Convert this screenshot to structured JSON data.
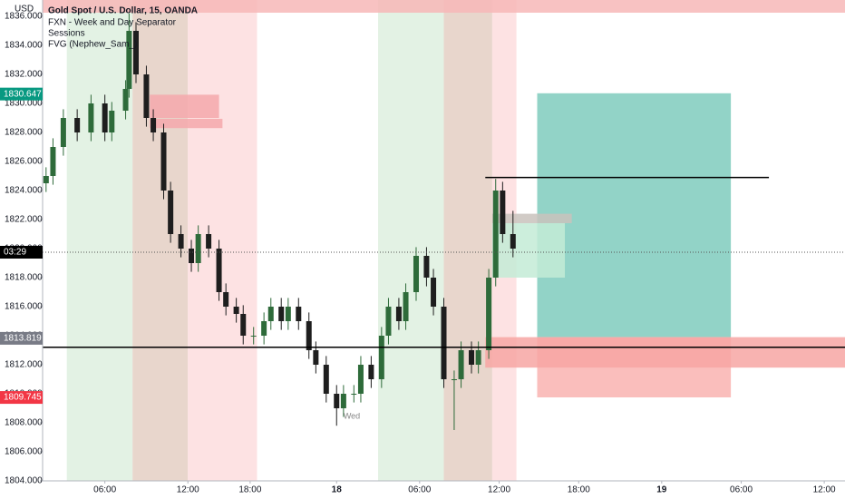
{
  "chart_data": {
    "type": "candlestick",
    "title": "Gold Spot / U.S. Dollar, 15, OANDA",
    "indicators": [
      "FXN - Week and Day Separator",
      "Sessions",
      "FVG (Nephew_Sam_)"
    ],
    "currency": "USD",
    "annotation": "Wed",
    "up_color": "#2e6b3a",
    "down_color": "#1e1e1e",
    "x": [
      1,
      3,
      6,
      10,
      14,
      18,
      20,
      24,
      25,
      27,
      30,
      32,
      35,
      37,
      40,
      43,
      45,
      48,
      51,
      53,
      56,
      58,
      61,
      64,
      66,
      69,
      71,
      74,
      77,
      79,
      82,
      85,
      87,
      90,
      92,
      95,
      98,
      100,
      103,
      105,
      108,
      111,
      113,
      116,
      119,
      121,
      124,
      126,
      129,
      131,
      133,
      136
    ],
    "open": [
      1824.5,
      1825,
      1827,
      1829,
      1828,
      1830,
      1828,
      1829.5,
      1831,
      1835,
      1832,
      1829,
      1828,
      1824,
      1821,
      1820,
      1819,
      1821,
      1820,
      1817,
      1816,
      1815.5,
      1814,
      1814,
      1815,
      1816,
      1815,
      1816,
      1815,
      1813,
      1812,
      1810,
      1809,
      1810,
      1810,
      1812,
      1811,
      1814,
      1816,
      1815,
      1817,
      1819.5,
      1818,
      1816,
      1811,
      1811,
      1813,
      1812,
      1813,
      1818,
      1824,
      1821
    ],
    "high": [
      1825.6,
      1827.6,
      1829.6,
      1829.6,
      1830.6,
      1830.6,
      1830.1,
      1831.6,
      1836.2,
      1835.6,
      1832.6,
      1829.6,
      1828.6,
      1824.6,
      1821.6,
      1820.6,
      1821.6,
      1821.6,
      1820.6,
      1817.6,
      1816.6,
      1816.1,
      1814.6,
      1815.6,
      1816.6,
      1816.6,
      1816.6,
      1816.6,
      1815.6,
      1813.6,
      1812.6,
      1810.6,
      1810.6,
      1810.6,
      1812.6,
      1812.6,
      1814.6,
      1816.6,
      1816.6,
      1817.6,
      1820.1,
      1820.1,
      1818.6,
      1816.6,
      1811.6,
      1813.6,
      1813.6,
      1813.6,
      1818.6,
      1824.8,
      1824.6,
      1822.6
    ],
    "low": [
      1823.9,
      1824.4,
      1826.4,
      1827.4,
      1827.4,
      1827.4,
      1827.4,
      1828.9,
      1830.4,
      1831.4,
      1828.4,
      1827.4,
      1823.4,
      1820.4,
      1819.4,
      1818.4,
      1818.4,
      1819.4,
      1816.4,
      1815.4,
      1814.9,
      1813.4,
      1813.4,
      1813.4,
      1814.4,
      1814.4,
      1814.4,
      1814.4,
      1812.4,
      1811.4,
      1809.4,
      1807.8,
      1808.4,
      1809.4,
      1809.4,
      1810.4,
      1810.4,
      1813.4,
      1814.4,
      1814.4,
      1816.4,
      1817.4,
      1815.4,
      1810.4,
      1807.5,
      1810.4,
      1811.4,
      1811.4,
      1812.4,
      1817.4,
      1820.4,
      1819.4
    ],
    "close": [
      1825,
      1827,
      1829,
      1828,
      1830,
      1828,
      1829.5,
      1831,
      1835,
      1832,
      1829,
      1828,
      1824,
      1821,
      1820,
      1819,
      1821,
      1820,
      1817,
      1816,
      1815.5,
      1814,
      1814,
      1815,
      1816,
      1815,
      1816,
      1815,
      1813,
      1812,
      1810,
      1809,
      1810,
      1810,
      1812,
      1811,
      1814,
      1816,
      1815,
      1817,
      1819.5,
      1818,
      1816,
      1811,
      1811,
      1813,
      1812,
      1813,
      1818,
      1824,
      1821,
      1820
    ],
    "xlim": [
      0,
      232
    ],
    "xticks": [
      {
        "value": 18,
        "label": "06:00"
      },
      {
        "value": 42,
        "label": "12:00"
      },
      {
        "value": 60,
        "label": "18:00"
      },
      {
        "value": 85,
        "label": "18"
      },
      {
        "value": 109,
        "label": "06:00"
      },
      {
        "value": 132,
        "label": "12:00"
      },
      {
        "value": 155,
        "label": "18:00"
      },
      {
        "value": 179,
        "label": "19"
      },
      {
        "value": 202,
        "label": "06:00"
      },
      {
        "value": 226,
        "label": "12:00"
      }
    ],
    "ylim": [
      1804,
      1837.125
    ],
    "yticks": [
      {
        "value": 1804,
        "label": "1804.000"
      },
      {
        "value": 1806,
        "label": "1806.000"
      },
      {
        "value": 1808,
        "label": "1808.000"
      },
      {
        "value": 1810,
        "label": "1810.000"
      },
      {
        "value": 1812,
        "label": "1812.000"
      },
      {
        "value": 1814,
        "label": "1814.000"
      },
      {
        "value": 1816,
        "label": "1816.000"
      },
      {
        "value": 1818,
        "label": "1818.000"
      },
      {
        "value": 1820,
        "label": "1820.000"
      },
      {
        "value": 1822,
        "label": "1822.000"
      },
      {
        "value": 1824,
        "label": "1824.000"
      },
      {
        "value": 1826,
        "label": "1826.000"
      },
      {
        "value": 1828,
        "label": "1828.000"
      },
      {
        "value": 1830,
        "label": "1830.000"
      },
      {
        "value": 1832,
        "label": "1832.000"
      },
      {
        "value": 1834,
        "label": "1834.000"
      },
      {
        "value": 1836,
        "label": "1836.000"
      }
    ],
    "sessions": [
      {
        "x0": 7,
        "x1": 26,
        "color": "#e3f2e4"
      },
      {
        "x0": 26,
        "x1": 42,
        "color": "#e8d6cc"
      },
      {
        "x0": 42,
        "x1": 62,
        "color": "#fde2e3"
      },
      {
        "x0": 97,
        "x1": 116,
        "color": "#e3f2e4"
      },
      {
        "x0": 116,
        "x1": 130,
        "color": "#e8d6cc"
      },
      {
        "x0": 130,
        "x1": 137,
        "color": "#fde2e3"
      }
    ],
    "zones": [
      {
        "x0": 0,
        "x1": 232,
        "y0": 1836.25,
        "y1": 1837.125,
        "color": "#f7b7b7"
      },
      {
        "x0": 31,
        "x1": 51,
        "y0": 1829,
        "y1": 1830.6,
        "color": "#f4a8ab"
      },
      {
        "x0": 31,
        "x1": 52,
        "y0": 1828.3,
        "y1": 1828.94,
        "color": "#f4a8ab"
      },
      {
        "x0": 143,
        "x1": 199,
        "y0": 1813.9,
        "y1": 1830.7,
        "color": "#7fcbbd"
      },
      {
        "x0": 143,
        "x1": 199,
        "y0": 1809.75,
        "y1": 1813.9,
        "color": "#f9b3b0"
      },
      {
        "x0": 128,
        "x1": 232,
        "y0": 1811.8,
        "y1": 1813.9,
        "color": "#f7a6a3"
      },
      {
        "x0": 130,
        "x1": 153,
        "y0": 1821.75,
        "y1": 1822.4,
        "color": "#c9c2bc"
      },
      {
        "x0": 130,
        "x1": 151,
        "y0": 1818,
        "y1": 1821.75,
        "color": "#c3ebd6"
      }
    ],
    "lines": [
      {
        "x0": 0,
        "x1": 232,
        "value": 1813.2
      },
      {
        "x0": 128,
        "x1": 210,
        "value": 1824.9
      }
    ],
    "price_labels": [
      {
        "value": 1830.647,
        "label": "1830.647",
        "color": "#089981"
      },
      {
        "value": 1813.819,
        "label": "1813.819",
        "color": "#787b86"
      },
      {
        "value": 1809.745,
        "label": "1809.745",
        "color": "#f23645"
      }
    ],
    "countdown": {
      "value": 1819.75,
      "label": "03:29",
      "color": "#000000"
    }
  }
}
